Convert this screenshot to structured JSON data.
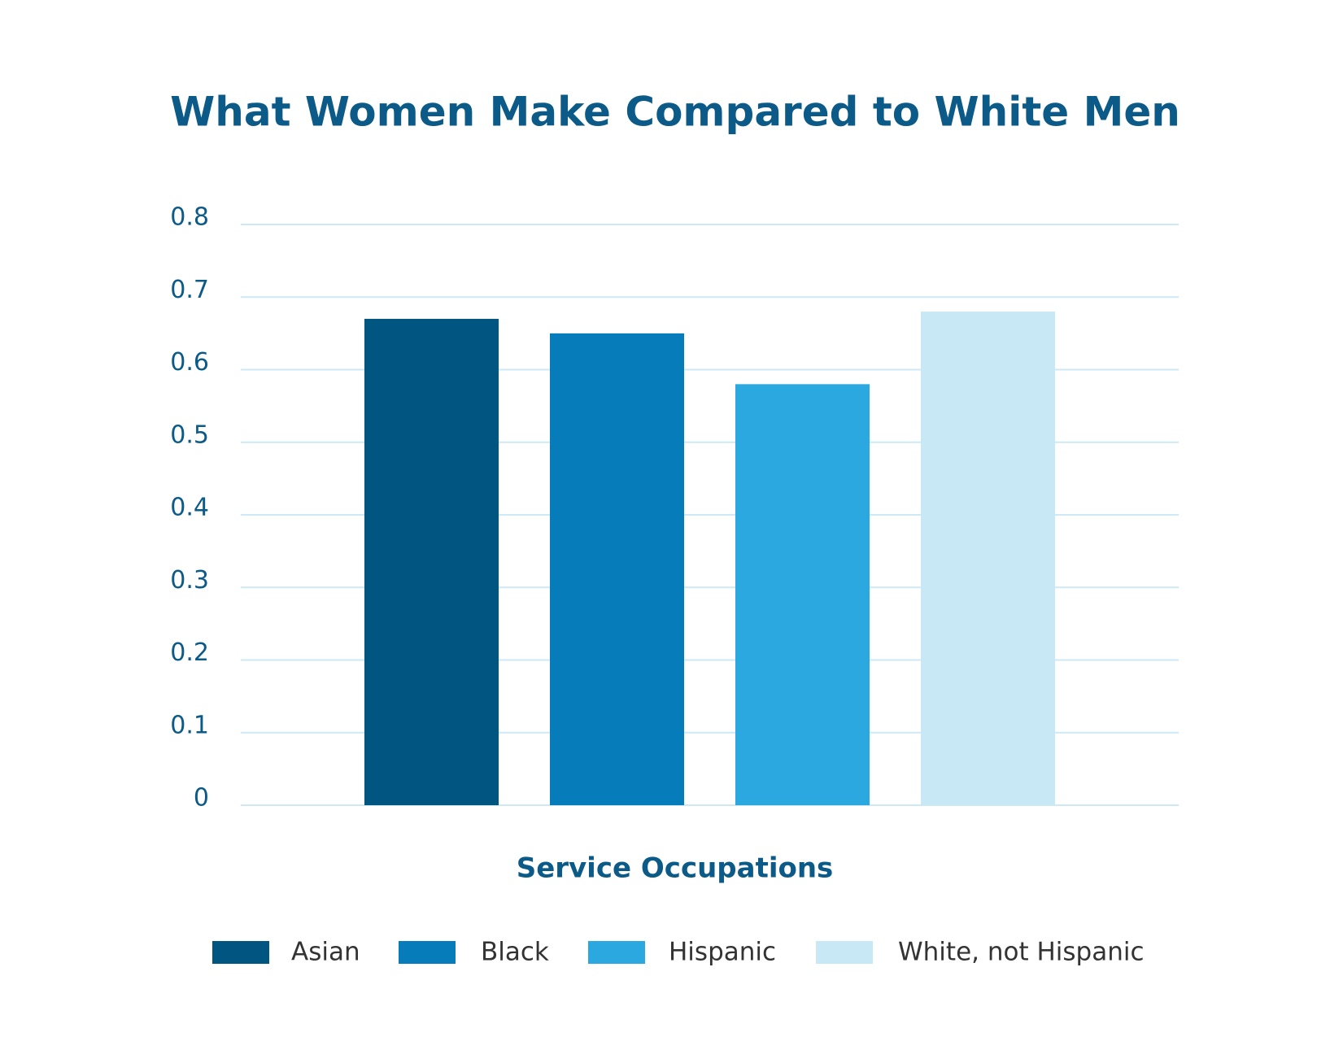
{
  "chart_data": {
    "type": "bar",
    "title": "What Women Make Compared to White Men",
    "categories": [
      "Service Occupations"
    ],
    "series": [
      {
        "name": "Asian",
        "color": "#015581",
        "values": [
          0.67
        ]
      },
      {
        "name": "Black",
        "color": "#077cba",
        "values": [
          0.65
        ]
      },
      {
        "name": "Hispanic",
        "color": "#2ba8e0",
        "values": [
          0.58
        ]
      },
      {
        "name": "White, not Hispanic",
        "color": "#c8e8f5",
        "values": [
          0.68
        ]
      }
    ],
    "ylim": [
      0,
      0.8
    ],
    "yticks": [
      0,
      0.1,
      0.2,
      0.3,
      0.4,
      0.5,
      0.6,
      0.7,
      0.8
    ],
    "grid": true,
    "legend": "bottom"
  }
}
